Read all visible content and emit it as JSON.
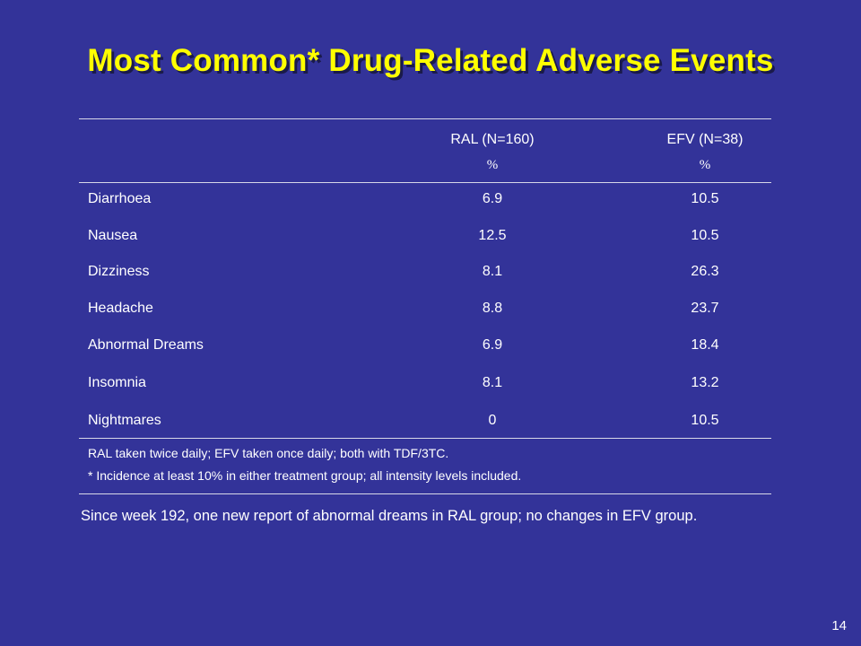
{
  "slide": {
    "title": "Most Common* Drug-Related Adverse Events",
    "page_number": "14",
    "footer_text": "Since week 192, one new report of abnormal dreams in RAL group; no changes in EFV group."
  },
  "table": {
    "columns": [
      {
        "label": "",
        "unit": ""
      },
      {
        "label": "RAL (N=160)",
        "unit": "%"
      },
      {
        "label": "EFV (N=38)",
        "unit": "%"
      }
    ],
    "rows": [
      {
        "event": "Diarrhoea",
        "ral": "6.9",
        "efv": "10.5"
      },
      {
        "event": "Nausea",
        "ral": "12.5",
        "efv": "10.5"
      },
      {
        "event": "Dizziness",
        "ral": "8.1",
        "efv": "26.3"
      },
      {
        "event": "Headache",
        "ral": "8.8",
        "efv": "23.7"
      },
      {
        "event": "Abnormal Dreams",
        "ral": "6.9",
        "efv": "18.4"
      },
      {
        "event": "Insomnia",
        "ral": "8.1",
        "efv": "13.2"
      },
      {
        "event": "Nightmares",
        "ral": "0",
        "efv": "10.5"
      }
    ],
    "notes": [
      "RAL taken twice daily; EFV taken once daily; both with TDF/3TC.",
      "* Incidence at least 10% in either treatment group; all intensity levels included."
    ]
  },
  "colors": {
    "background": "#333399",
    "title": "#ffff00",
    "text": "#ffffff",
    "rule": "#d8d8e8"
  }
}
